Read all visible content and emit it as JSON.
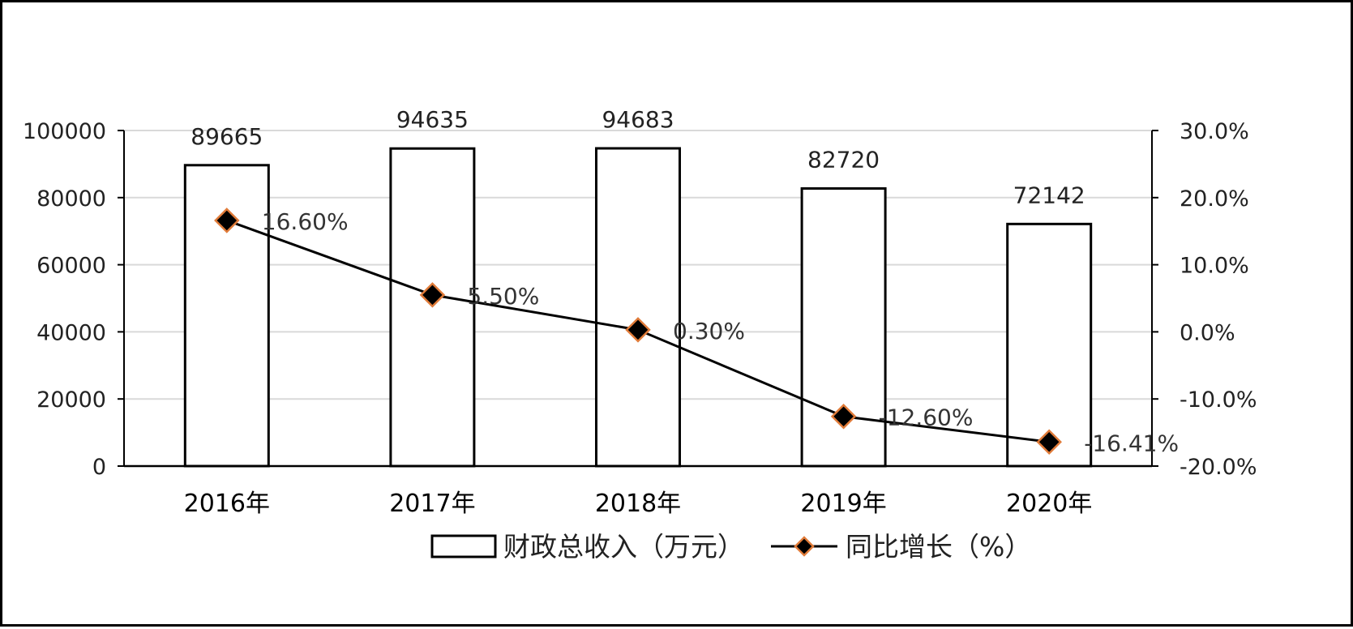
{
  "chart_data": {
    "type": "bar+line",
    "categories": [
      "2016年",
      "2017年",
      "2018年",
      "2019年",
      "2020年"
    ],
    "series": [
      {
        "name": "财政总收入（万元）",
        "type": "bar",
        "axis": "left",
        "values": [
          89665,
          94635,
          94683,
          82720,
          72142
        ],
        "labels": [
          "89665",
          "94635",
          "94683",
          "82720",
          "72142"
        ],
        "fill": "#ffffff",
        "stroke": "#000000"
      },
      {
        "name": "同比增长（%）",
        "type": "line",
        "axis": "right",
        "values": [
          16.6,
          5.5,
          0.3,
          -12.6,
          -16.41
        ],
        "labels": [
          "16.60%",
          "5.50%",
          "0.30%",
          "-12.60%",
          "-16.41%"
        ],
        "line_color": "#000000",
        "marker_fill": "#000000",
        "marker_stroke": "#e07b39"
      }
    ],
    "left_axis": {
      "ylim": [
        0,
        100000
      ],
      "ticks": [
        0,
        20000,
        40000,
        60000,
        80000,
        100000
      ],
      "tick_labels": [
        "0",
        "20000",
        "40000",
        "60000",
        "80000",
        "100000"
      ]
    },
    "right_axis": {
      "ylim": [
        -20,
        30
      ],
      "ticks": [
        -20,
        -10,
        0,
        10,
        20,
        30
      ],
      "tick_labels": [
        "-20.0%",
        "-10.0%",
        "0.0%",
        "10.0%",
        "20.0%",
        "30.0%"
      ]
    },
    "grid": true,
    "grid_color": "#d9d9d9",
    "legend": {
      "position": "bottom",
      "entries": [
        "财政总收入（万元）",
        "同比增长（%）"
      ]
    }
  }
}
